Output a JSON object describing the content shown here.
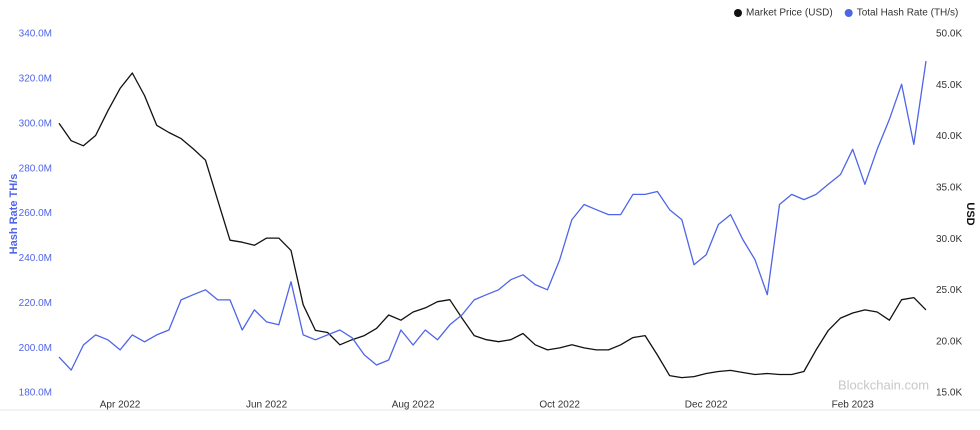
{
  "chart_data": {
    "type": "line",
    "legend": "top-right",
    "grid": false,
    "ylabel": "Hash Rate TH/s",
    "y2label": "USD",
    "watermark": "Blockchain.com",
    "categories": [
      null,
      null,
      null,
      null,
      null,
      "Apr 2022",
      null,
      null,
      null,
      null,
      null,
      null,
      null,
      null,
      null,
      null,
      null,
      "Jun 2022",
      null,
      null,
      null,
      null,
      null,
      null,
      null,
      null,
      null,
      null,
      null,
      "Aug 2022",
      null,
      null,
      null,
      null,
      null,
      null,
      null,
      null,
      null,
      null,
      null,
      "Oct 2022",
      null,
      null,
      null,
      null,
      null,
      null,
      null,
      null,
      null,
      null,
      null,
      "Dec 2022",
      null,
      null,
      null,
      null,
      null,
      null,
      null,
      null,
      null,
      null,
      null,
      "Feb 2023",
      null,
      null,
      null,
      null,
      null,
      null
    ],
    "ylim": [
      180000000,
      340000000
    ],
    "yticks": [
      {
        "value": 180000000,
        "label": "180.0M"
      },
      {
        "value": 200000000,
        "label": "200.0M"
      },
      {
        "value": 220000000,
        "label": "220.0M"
      },
      {
        "value": 240000000,
        "label": "240.0M"
      },
      {
        "value": 260000000,
        "label": "260.0M"
      },
      {
        "value": 280000000,
        "label": "280.0M"
      },
      {
        "value": 300000000,
        "label": "300.0M"
      },
      {
        "value": 320000000,
        "label": "320.0M"
      },
      {
        "value": 340000000,
        "label": "340.0M"
      }
    ],
    "y2lim": [
      15000,
      50000
    ],
    "y2ticks": [
      {
        "value": 15000,
        "label": "15.0K"
      },
      {
        "value": 20000,
        "label": "20.0K"
      },
      {
        "value": 25000,
        "label": "25.0K"
      },
      {
        "value": 30000,
        "label": "30.0K"
      },
      {
        "value": 35000,
        "label": "35.0K"
      },
      {
        "value": 40000,
        "label": "40.0K"
      },
      {
        "value": 45000,
        "label": "45.0K"
      },
      {
        "value": 50000,
        "label": "50.0K"
      }
    ],
    "series": [
      {
        "name": "Market Price (USD)",
        "color": "#111111",
        "axis": "y2",
        "values": [
          41300,
          39600,
          39100,
          40100,
          42500,
          44700,
          46200,
          44000,
          41100,
          40400,
          39800,
          38800,
          37700,
          33800,
          29900,
          29700,
          29400,
          30100,
          30100,
          28900,
          23600,
          21100,
          20900,
          19700,
          20200,
          20600,
          21300,
          22600,
          22100,
          22900,
          23300,
          23900,
          24100,
          22300,
          20600,
          20200,
          20000,
          20200,
          20800,
          19700,
          19200,
          19400,
          19700,
          19400,
          19200,
          19200,
          19700,
          20400,
          20600,
          18700,
          16700,
          16500,
          16600,
          16900,
          17100,
          17200,
          17000,
          16800,
          16900,
          16800,
          16800,
          17100,
          19200,
          21100,
          22300,
          22800,
          23100,
          22900,
          22100,
          24100,
          24300,
          23100
        ]
      },
      {
        "name": "Total Hash Rate (TH/s)",
        "color": "#4f65e8",
        "axis": "y",
        "values": [
          196000000,
          190200000,
          201400000,
          205900000,
          203700000,
          199200000,
          205900000,
          202800000,
          205900000,
          208100000,
          221500000,
          223800000,
          226000000,
          221500000,
          221500000,
          208100000,
          217100000,
          211700000,
          210400000,
          229600000,
          205900000,
          203700000,
          205900000,
          208100000,
          204600000,
          197000000,
          192500000,
          194700000,
          208100000,
          201400000,
          208100000,
          203700000,
          210400000,
          214800000,
          221500000,
          223800000,
          226000000,
          230500000,
          232700000,
          228300000,
          226000000,
          239400000,
          257300000,
          264000000,
          261700000,
          259500000,
          259500000,
          268500000,
          268500000,
          269800000,
          261700000,
          257300000,
          237200000,
          241600000,
          255100000,
          259500000,
          248400000,
          239400000,
          223800000,
          264000000,
          268500000,
          266200000,
          268500000,
          273000000,
          277400000,
          288600000,
          273000000,
          288600000,
          302000000,
          317600000,
          290800000,
          327900000
        ]
      }
    ]
  }
}
